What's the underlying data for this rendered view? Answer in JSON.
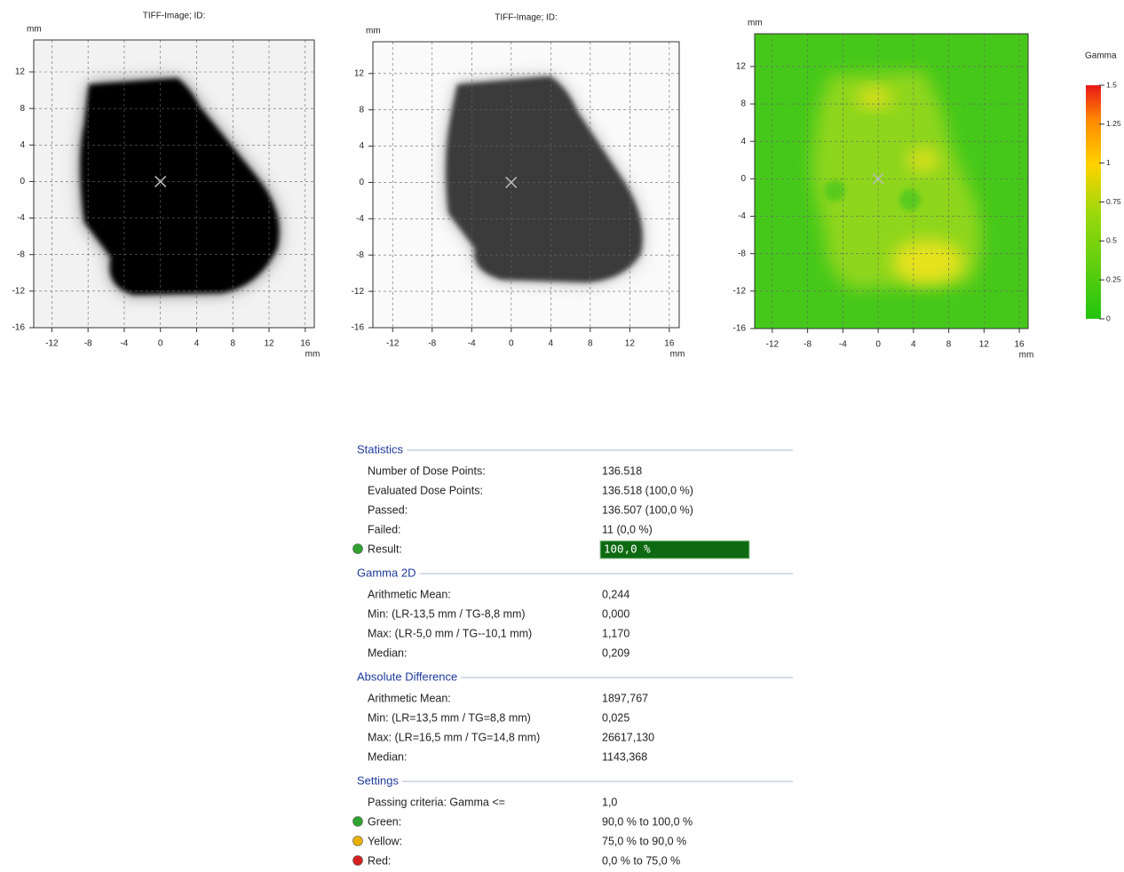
{
  "plots": [
    {
      "title": "TIFF-Image; ID:",
      "y_unit": "mm",
      "x_unit": "mm",
      "xlim": [
        -14,
        17
      ],
      "ylim": [
        -16,
        15.5
      ],
      "xticks": [
        -12,
        -8,
        -4,
        0,
        4,
        8,
        12,
        16
      ],
      "yticks": [
        -16,
        -12,
        -8,
        -4,
        0,
        4,
        8,
        12
      ]
    },
    {
      "title": "TIFF-Image; ID:",
      "y_unit": "mm",
      "x_unit": "mm",
      "xlim": [
        -14,
        17
      ],
      "ylim": [
        -16,
        15.5
      ],
      "xticks": [
        -12,
        -8,
        -4,
        0,
        4,
        8,
        12,
        16
      ],
      "yticks": [
        -16,
        -12,
        -8,
        -4,
        0,
        4,
        8,
        12
      ]
    },
    {
      "y_unit": "mm",
      "x_unit": "mm",
      "xlim": [
        -14,
        17
      ],
      "ylim": [
        -16,
        15.5
      ],
      "xticks": [
        -12,
        -8,
        -4,
        0,
        4,
        8,
        12,
        16
      ],
      "yticks": [
        -16,
        -12,
        -8,
        -4,
        0,
        4,
        8,
        12
      ]
    }
  ],
  "colorbar": {
    "title": "Gamma",
    "ylim": [
      0,
      1.5
    ],
    "yticks": [
      0,
      0.25,
      0.5,
      0.75,
      1,
      1.25,
      1.5
    ]
  },
  "statistics": {
    "sections": [
      {
        "title": "Statistics",
        "rows": [
          {
            "label": "Number of Dose Points:",
            "value": "136.518"
          },
          {
            "label": "Evaluated Dose Points:",
            "value": "136.518 (100,0 %)"
          },
          {
            "label": "Passed:",
            "value": "136.507 (100,0 %)"
          },
          {
            "label": "Failed:",
            "value": "11 (0,0 %)"
          },
          {
            "label": "Result:",
            "value": "100,0 %",
            "color": "#2fa32f"
          }
        ]
      },
      {
        "title": "Gamma 2D",
        "rows": [
          {
            "label": "Arithmetic Mean:",
            "value": "0,244"
          },
          {
            "label": "Min: (LR-13,5 mm / TG-8,8 mm)",
            "value": "0,000"
          },
          {
            "label": "Max: (LR-5,0 mm / TG--10,1 mm)",
            "value": "1,170"
          },
          {
            "label": "Median:",
            "value": "0,209"
          }
        ]
      },
      {
        "title": "Absolute Difference",
        "rows": [
          {
            "label": "Arithmetic Mean:",
            "value": "1897,767"
          },
          {
            "label": "Min: (LR=13,5 mm / TG=8,8 mm)",
            "value": "0,025"
          },
          {
            "label": "Max: (LR=16,5 mm / TG=14,8 mm)",
            "value": "26617,130"
          },
          {
            "label": "Median:",
            "value": "1143,368"
          }
        ]
      },
      {
        "title": "Settings",
        "rows": [
          {
            "label": "Passing criteria: Gamma <=",
            "value": "1,0"
          },
          {
            "label": "Green:",
            "value": "90,0 % to 100,0 %",
            "color": "#2fa32f"
          },
          {
            "label": "Yellow:",
            "value": "75,0 % to 90,0 %",
            "color": "#e8b000"
          },
          {
            "label": "Red:",
            "value": "0,0 % to 75,0 %",
            "color": "#d42020"
          }
        ]
      }
    ]
  }
}
